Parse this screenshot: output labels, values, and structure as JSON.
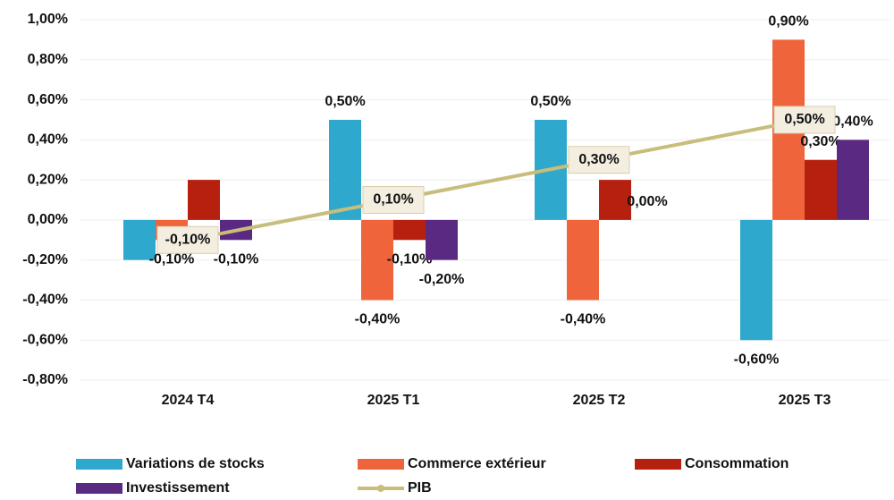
{
  "chart_data": {
    "type": "bar",
    "categories": [
      "2024 T4",
      "2025 T1",
      "2025 T2",
      "2025 T3"
    ],
    "ylim": [
      -0.8,
      1.0
    ],
    "yticks": [
      {
        "value": -0.8,
        "label": "-0,80%"
      },
      {
        "value": -0.6,
        "label": "-0,60%"
      },
      {
        "value": -0.4,
        "label": "-0,40%"
      },
      {
        "value": -0.2,
        "label": "-0,20%"
      },
      {
        "value": 0,
        "label": "0,00%"
      },
      {
        "value": 0.2,
        "label": "0,20%"
      },
      {
        "value": 0.4,
        "label": "0,40%"
      },
      {
        "value": 0.6,
        "label": "0,60%"
      },
      {
        "value": 0.8,
        "label": "0,80%"
      },
      {
        "value": 1.0,
        "label": "1,00%"
      }
    ],
    "grid": true,
    "series": [
      {
        "name": "Variations de stocks",
        "color": "#2ea8cc",
        "values": [
          -0.2,
          0.5,
          0.5,
          -0.6
        ],
        "value_labels": [
          null,
          "0,50%",
          "0,50%",
          "-0,60%"
        ]
      },
      {
        "name": "Commerce extérieur",
        "color": "#f0643c",
        "values": [
          -0.1,
          -0.4,
          -0.4,
          0.9
        ],
        "value_labels": [
          "-0,10%",
          "-0,40%",
          "-0,40%",
          "0,90%"
        ]
      },
      {
        "name": "Consommation",
        "color": "#b5200f",
        "values": [
          0.2,
          -0.1,
          0.2,
          0.3
        ],
        "value_labels": [
          null,
          "-0,10%",
          null,
          "0,30%"
        ]
      },
      {
        "name": "Investissement",
        "color": "#5a2a82",
        "values": [
          -0.1,
          -0.2,
          0,
          0.4
        ],
        "value_labels": [
          "-0,10%",
          "-0,20%",
          "0,00%",
          "0,40%"
        ]
      },
      {
        "name": "PIB",
        "color": "#c8bd7a",
        "type": "line",
        "values": [
          -0.1,
          0.1,
          0.3,
          0.5
        ],
        "value_labels": [
          "-0,10%",
          "0,10%",
          "0,30%",
          "0,50%"
        ]
      }
    ]
  }
}
